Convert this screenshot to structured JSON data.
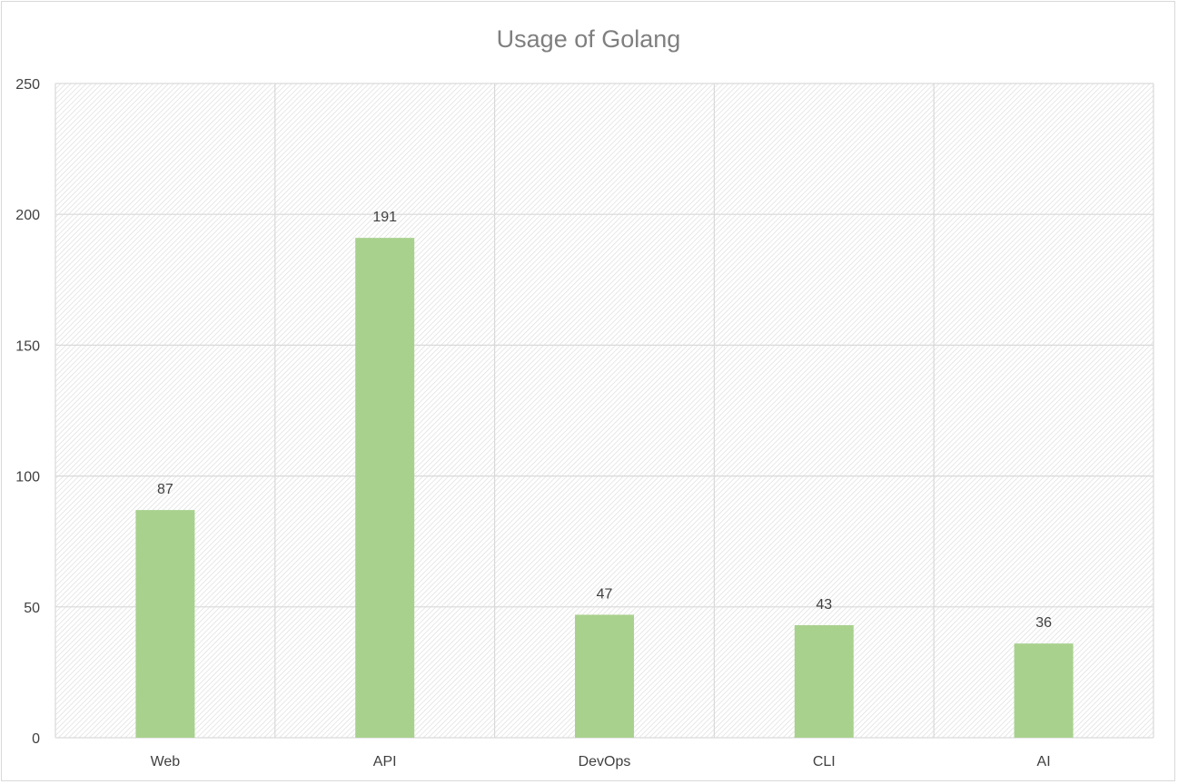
{
  "chart_data": {
    "type": "bar",
    "title": "Usage of Golang",
    "xlabel": "",
    "ylabel": "",
    "categories": [
      "Web",
      "API",
      "DevOps",
      "CLI",
      "AI"
    ],
    "values": [
      87,
      191,
      47,
      43,
      36
    ],
    "ylim": [
      0,
      250
    ],
    "yticks": [
      0,
      50,
      100,
      150,
      200,
      250
    ],
    "grid": true,
    "legend": "none",
    "data_labels": true,
    "bar_color": "#a9d18e",
    "gridline_color": "#d9d9d9",
    "plot_background": "hatched light gray diagonal pattern"
  }
}
